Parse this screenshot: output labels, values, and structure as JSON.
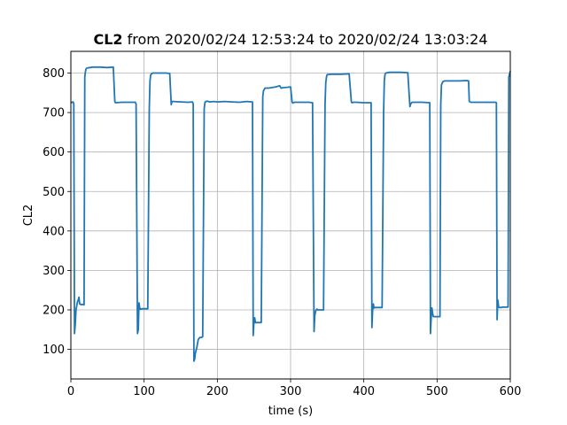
{
  "chart_data": {
    "type": "line",
    "title_bold": "CL2",
    "title_rest": "from 2020/02/24 12:53:24 to 2020/02/24 13:03:24",
    "xlabel": "time (s)",
    "ylabel": "CL2",
    "xlim": [
      0,
      600
    ],
    "ylim": [
      25,
      855
    ],
    "xticks": [
      0,
      100,
      200,
      300,
      400,
      500,
      600
    ],
    "yticks": [
      100,
      200,
      300,
      400,
      500,
      600,
      700,
      800
    ],
    "grid": true,
    "line_color": "#1f77b4",
    "series": [
      {
        "x": [
          0,
          3,
          4,
          5,
          6,
          7,
          8,
          9,
          10,
          11,
          12,
          13,
          14,
          16,
          18,
          19,
          20,
          21,
          23,
          30,
          40,
          50,
          58,
          60,
          61,
          70,
          80,
          88,
          89,
          91,
          92,
          93,
          94,
          95,
          96,
          97,
          98,
          100,
          105,
          107,
          108,
          109,
          110,
          112,
          120,
          130,
          135,
          137,
          138,
          140,
          150,
          160,
          166,
          167,
          168,
          169,
          170,
          172,
          174,
          176,
          178,
          180,
          182,
          183,
          184,
          185,
          186,
          190,
          195,
          200,
          210,
          220,
          230,
          240,
          248,
          249,
          250,
          251,
          252,
          253,
          255,
          260,
          262,
          263,
          265,
          270,
          280,
          285,
          287,
          290,
          295,
          300,
          302,
          303,
          305,
          310,
          315,
          320,
          325,
          330,
          332,
          333,
          334,
          335,
          336,
          337,
          338,
          340,
          345,
          347,
          348,
          349,
          350,
          355,
          360,
          370,
          380,
          383,
          384,
          386,
          390,
          400,
          410,
          411,
          412,
          413,
          414,
          415,
          417,
          420,
          425,
          427,
          428,
          429,
          430,
          435,
          440,
          450,
          460,
          463,
          464,
          466,
          470,
          475,
          480,
          490,
          491,
          492,
          493,
          494,
          495,
          496,
          498,
          500,
          504,
          505,
          506,
          508,
          510,
          520,
          530,
          540,
          543,
          544,
          546,
          550,
          560,
          570,
          580,
          581,
          582,
          583,
          584,
          585,
          587,
          590,
          595,
          597,
          598,
          600
        ],
        "y": [
          725,
          727,
          722,
          140,
          165,
          200,
          210,
          220,
          225,
          232,
          215,
          215,
          213,
          214,
          213,
          790,
          805,
          812,
          813,
          815,
          815,
          814,
          815,
          728,
          725,
          726,
          726,
          726,
          722,
          140,
          150,
          218,
          205,
          202,
          202,
          203,
          203,
          203,
          203,
          710,
          780,
          795,
          798,
          800,
          800,
          800,
          799,
          720,
          728,
          728,
          727,
          726,
          727,
          722,
          70,
          75,
          90,
          105,
          125,
          130,
          130,
          132,
          710,
          725,
          728,
          728,
          729,
          727,
          728,
          727,
          728,
          727,
          726,
          728,
          727,
          135,
          170,
          180,
          168,
          168,
          168,
          168,
          740,
          755,
          762,
          762,
          765,
          768,
          762,
          763,
          764,
          765,
          727,
          724,
          726,
          726,
          726,
          726,
          726,
          725,
          145,
          185,
          195,
          200,
          202,
          200,
          200,
          200,
          200,
          720,
          775,
          790,
          796,
          797,
          797,
          797,
          798,
          727,
          725,
          726,
          726,
          725,
          725,
          155,
          200,
          215,
          205,
          206,
          206,
          206,
          206,
          700,
          780,
          797,
          800,
          802,
          802,
          802,
          801,
          715,
          722,
          726,
          726,
          726,
          726,
          725,
          140,
          180,
          205,
          190,
          183,
          183,
          183,
          183,
          183,
          720,
          770,
          778,
          780,
          780,
          780,
          781,
          780,
          728,
          726,
          726,
          726,
          726,
          726,
          725,
          175,
          225,
          208,
          206,
          206,
          207,
          207,
          207,
          790,
          805
        ]
      }
    ]
  }
}
